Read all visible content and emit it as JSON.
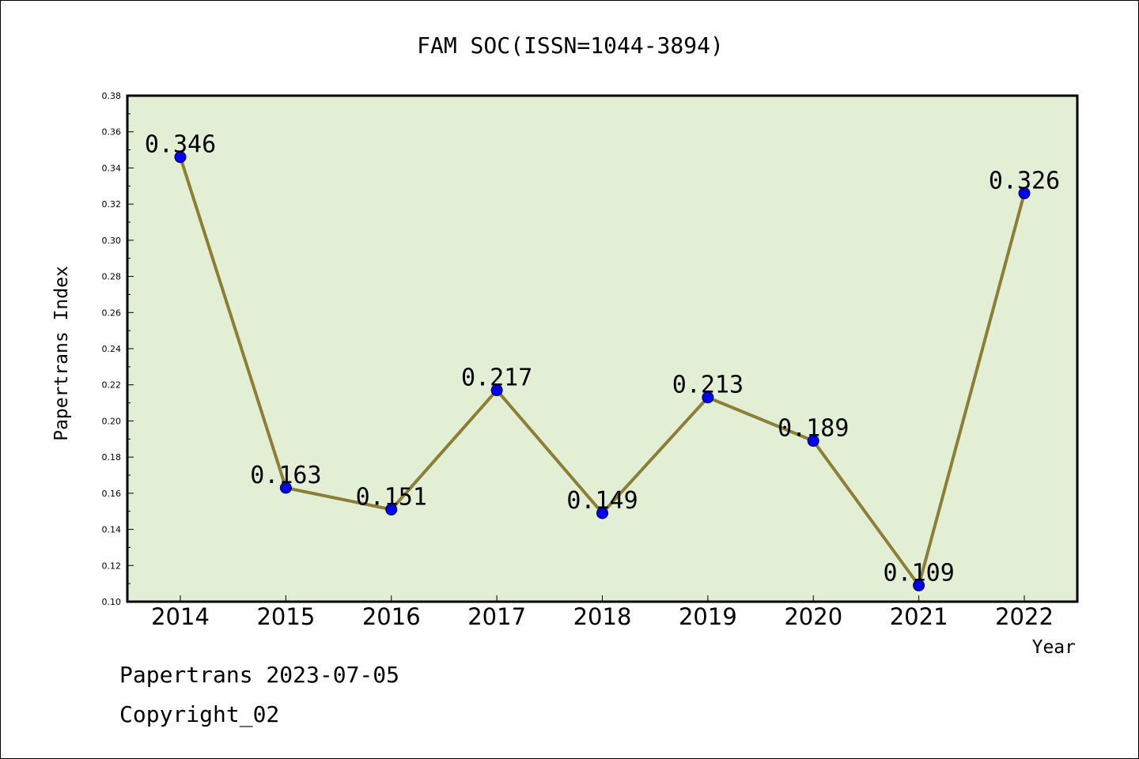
{
  "chart_data": {
    "type": "line",
    "title": "FAM SOC(ISSN=1044-3894)",
    "xlabel": "Year",
    "ylabel": "Papertrans Index",
    "categories": [
      "2014",
      "2015",
      "2016",
      "2017",
      "2018",
      "2019",
      "2020",
      "2021",
      "2022"
    ],
    "values": [
      0.346,
      0.163,
      0.151,
      0.217,
      0.149,
      0.213,
      0.189,
      0.109,
      0.326
    ],
    "data_labels": [
      "0.346",
      "0.163",
      "0.151",
      "0.217",
      "0.149",
      "0.213",
      "0.189",
      "0.109",
      "0.326"
    ],
    "ylim": [
      0.1,
      0.38
    ],
    "yticks": [
      "0.10",
      "0.12",
      "0.14",
      "0.16",
      "0.18",
      "0.20",
      "0.22",
      "0.24",
      "0.26",
      "0.28",
      "0.30",
      "0.32",
      "0.34",
      "0.36",
      "0.38"
    ],
    "grid": false,
    "colors": {
      "plot_background": "#e2efd5",
      "line": "#8c7f35",
      "marker": "#0000ff"
    }
  },
  "footer": {
    "date_line": "Papertrans 2023-07-05",
    "copyright_line": "Copyright_02"
  }
}
